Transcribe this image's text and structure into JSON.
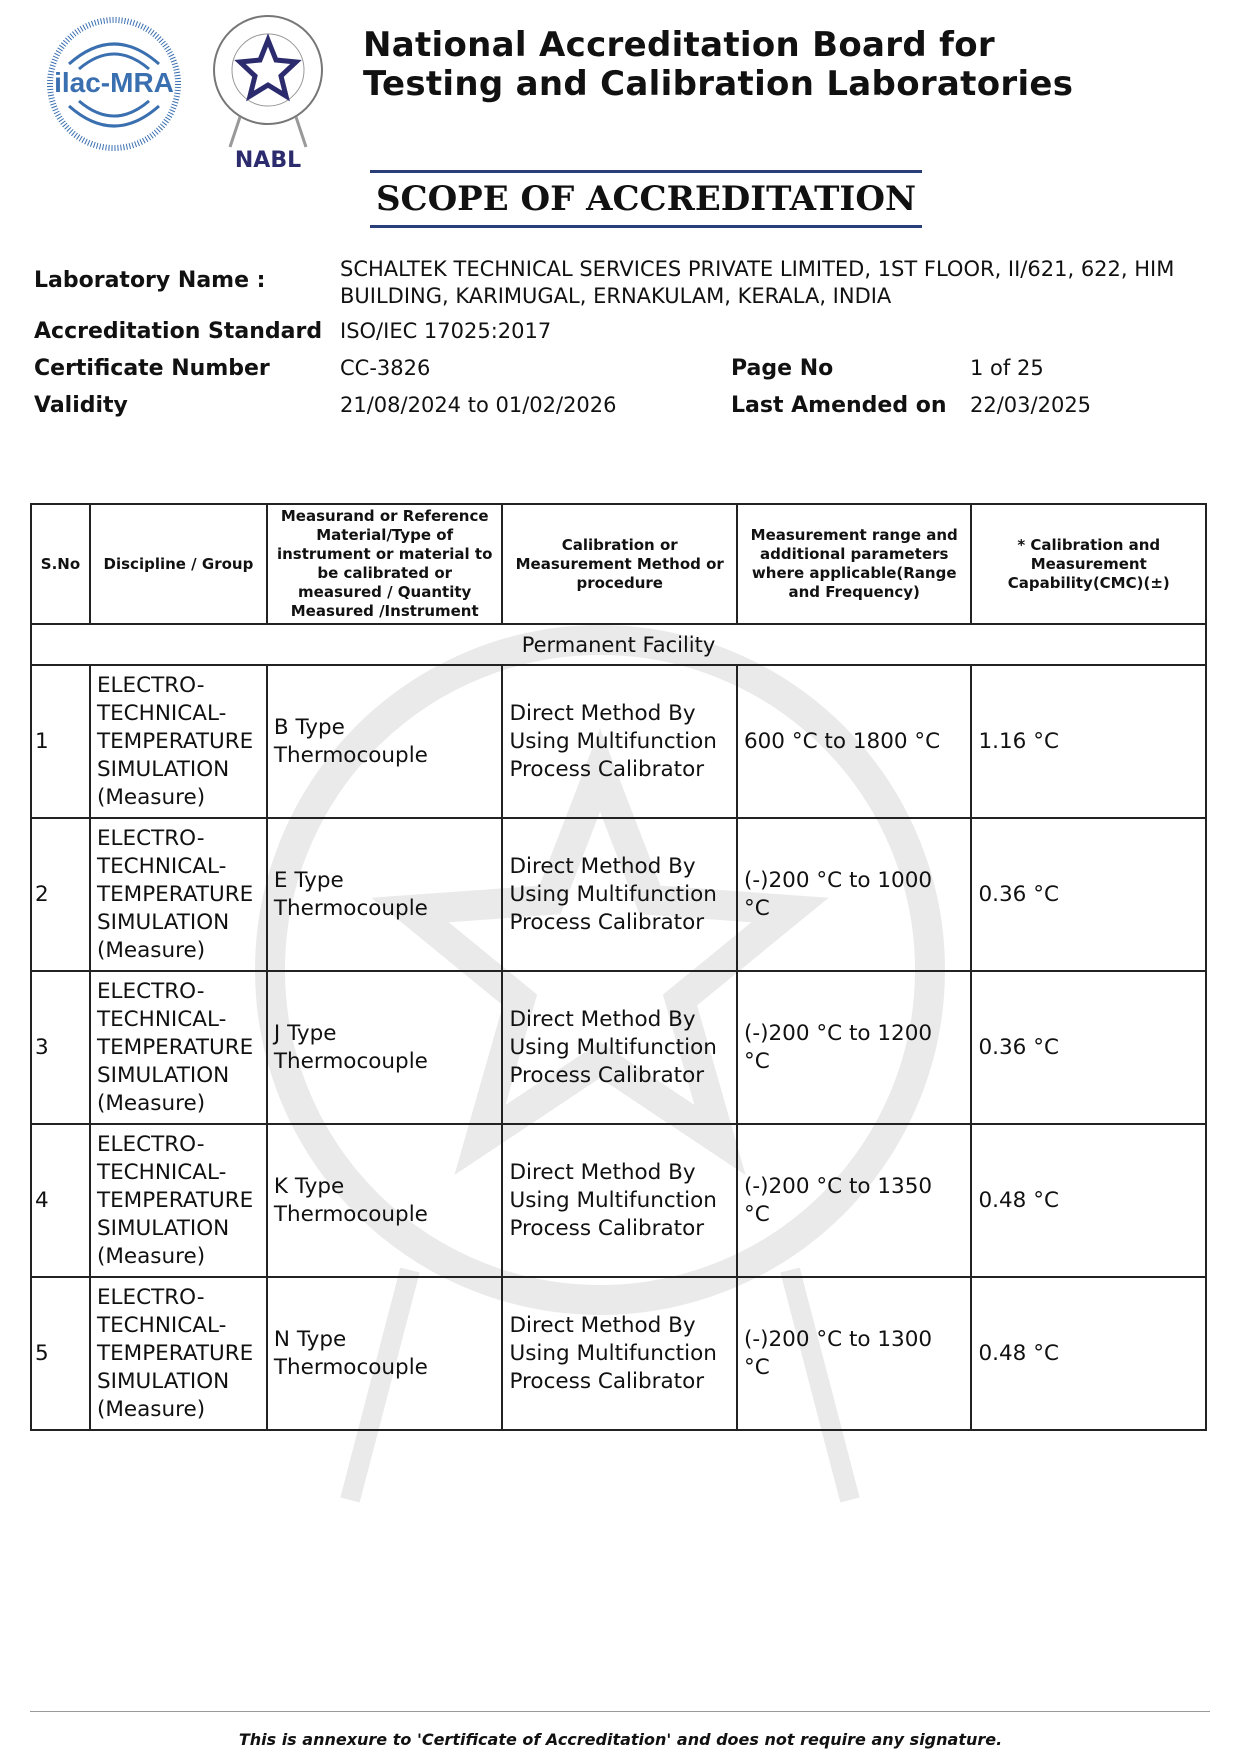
{
  "header": {
    "org_line1": "National Accreditation Board for",
    "org_line2": "Testing and Calibration Laboratories",
    "ilac_logo": "ilac-MRA",
    "nabl_logo": "NABL",
    "title": "SCOPE OF ACCREDITATION"
  },
  "info": {
    "lab_name_label": "Laboratory Name :",
    "lab_name": "SCHALTEK TECHNICAL SERVICES PRIVATE LIMITED, 1ST FLOOR, II/621, 622, HIM BUILDING, KARIMUGAL, ERNAKULAM, KERALA, INDIA",
    "standard_label": "Accreditation Standard",
    "standard": "ISO/IEC 17025:2017",
    "cert_label": "Certificate Number",
    "cert": "CC-3826",
    "page_label": "Page No",
    "page": "1 of 25",
    "validity_label": "Validity",
    "validity": "21/08/2024 to 01/02/2026",
    "amended_label": "Last Amended on",
    "amended": "22/03/2025"
  },
  "table": {
    "headers": [
      "S.No",
      "Discipline / Group",
      "Measurand or Reference Material/Type of instrument or material to be calibrated or measured / Quantity Measured /Instrument",
      "Calibration or Measurement Method or procedure",
      "Measurement range and additional parameters where applicable(Range and Frequency)",
      "* Calibration and Measurement Capability(CMC)(±)"
    ],
    "facility": "Permanent Facility",
    "rows": [
      [
        "1",
        "ELECTRO-TECHNICAL-TEMPERATURE SIMULATION (Measure)",
        "B Type Thermocouple",
        "Direct Method By Using Multifunction Process Calibrator",
        "600 °C to 1800 °C",
        "1.16 °C"
      ],
      [
        "2",
        "ELECTRO-TECHNICAL-TEMPERATURE SIMULATION (Measure)",
        "E Type Thermocouple",
        "Direct Method By Using Multifunction Process Calibrator",
        "(-)200 °C to 1000 °C",
        "0.36 °C"
      ],
      [
        "3",
        "ELECTRO-TECHNICAL-TEMPERATURE SIMULATION (Measure)",
        "J Type Thermocouple",
        "Direct Method By Using Multifunction Process Calibrator",
        "(-)200 °C to 1200 °C",
        "0.36 °C"
      ],
      [
        "4",
        "ELECTRO-TECHNICAL-TEMPERATURE SIMULATION (Measure)",
        "K Type Thermocouple",
        "Direct Method By Using Multifunction Process Calibrator",
        "(-)200 °C to 1350 °C",
        "0.48 °C"
      ],
      [
        "5",
        "ELECTRO-TECHNICAL-TEMPERATURE SIMULATION (Measure)",
        "N Type Thermocouple",
        "Direct Method By Using Multifunction Process Calibrator",
        "(-)200 °C to 1300 °C",
        "0.48 °C"
      ]
    ]
  },
  "footer": "This is annexure to 'Certificate of Accreditation' and does not require any signature.",
  "colors": {
    "accent": "#2a3f7a",
    "ilac_blue": "#3a6fb0",
    "nabl_navy": "#2b2b6e"
  }
}
